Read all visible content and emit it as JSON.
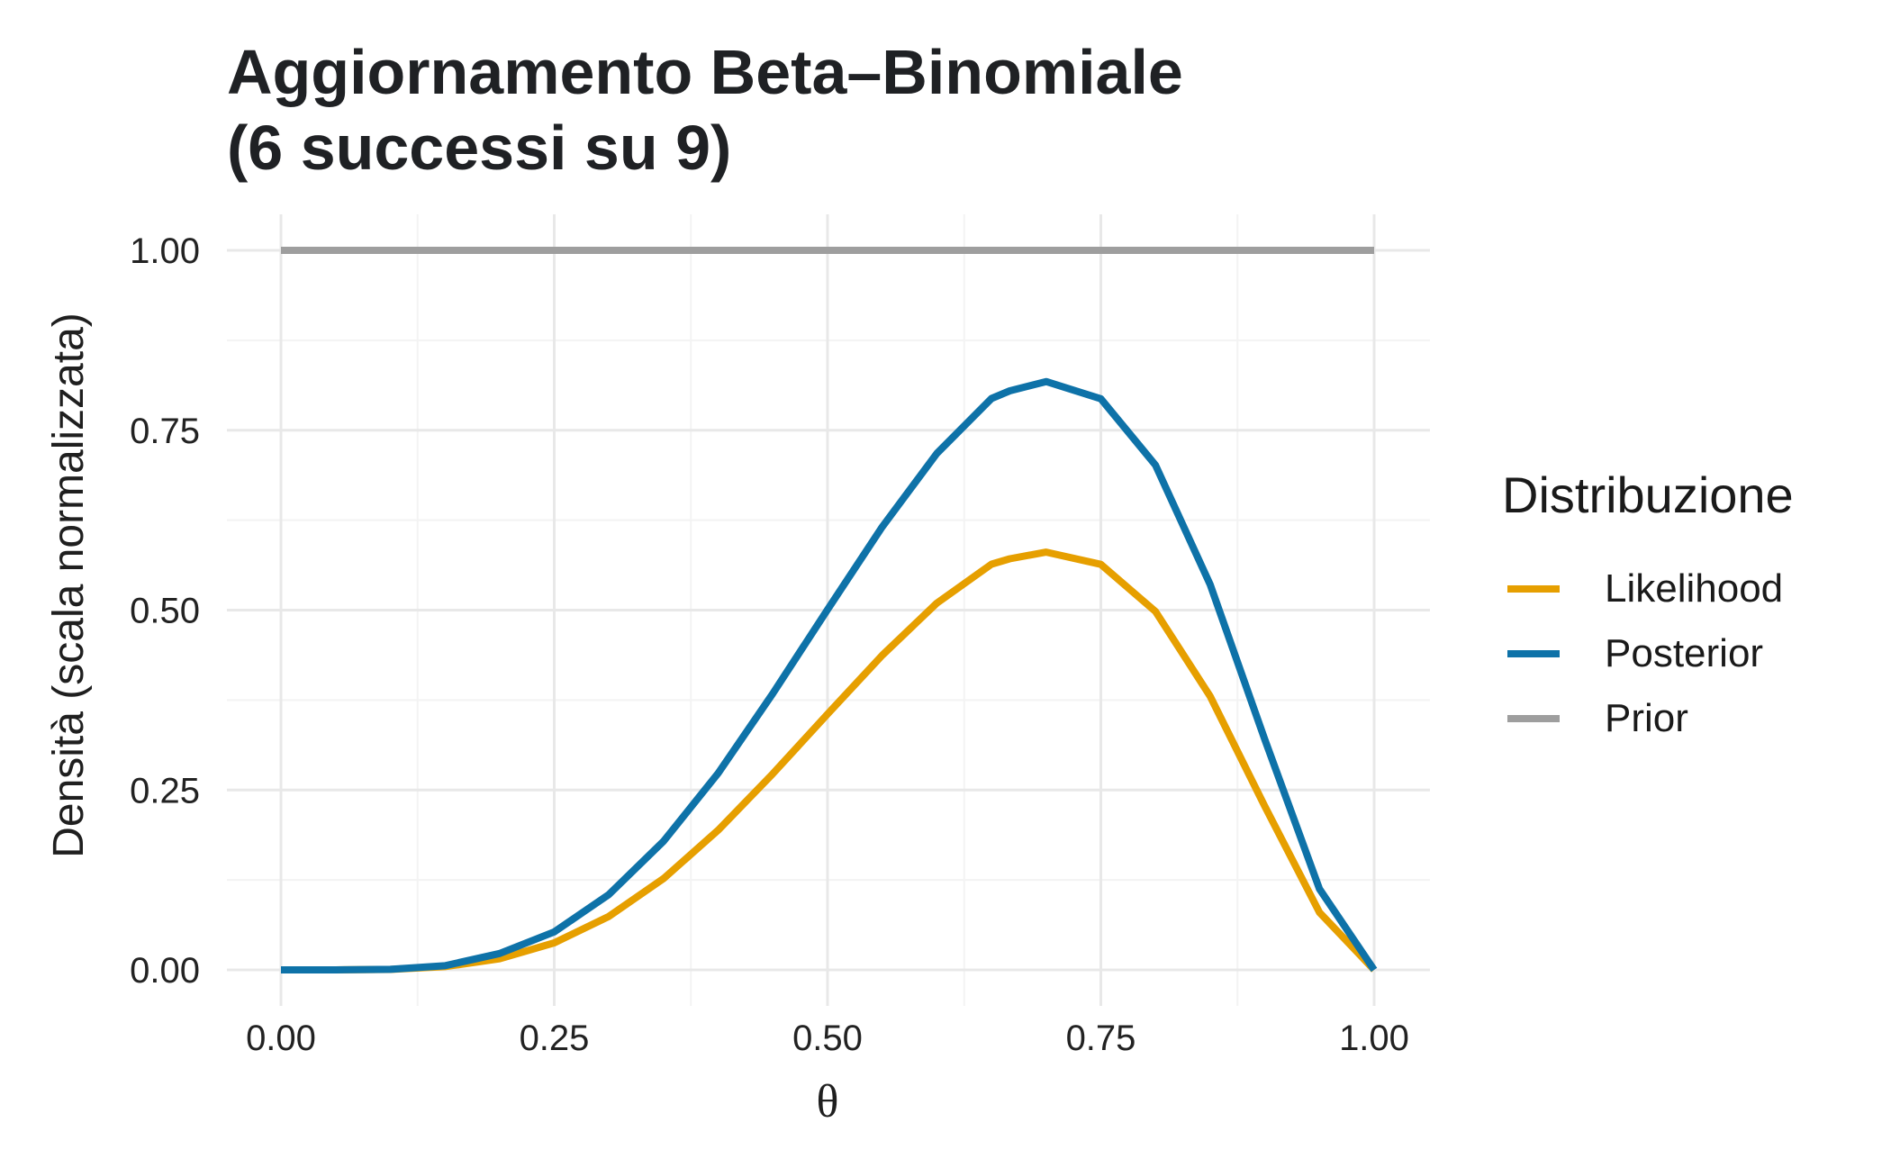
{
  "chart_data": {
    "type": "line",
    "title": [
      "Aggiornamento Beta–Binomiale",
      "(6 successi su 9)"
    ],
    "xlabel": "θ",
    "ylabel": "Densità (scala normalizzata)",
    "xlim": [
      0,
      1
    ],
    "ylim": [
      0,
      1
    ],
    "x_ticks": [
      "0.00",
      "0.25",
      "0.50",
      "0.75",
      "1.00"
    ],
    "y_ticks": [
      "0.00",
      "0.25",
      "0.50",
      "0.75",
      "1.00"
    ],
    "grid": true,
    "legend": {
      "title": "Distribuzione",
      "placement": "right",
      "entries": [
        {
          "name": "Likelihood",
          "color": "#E69F00"
        },
        {
          "name": "Posterior",
          "color": "#0E72A8"
        },
        {
          "name": "Prior",
          "color": "#9E9E9E"
        }
      ]
    },
    "series": [
      {
        "name": "Prior",
        "color": "#9E9E9E",
        "x": [
          0,
          1
        ],
        "y": [
          1,
          1
        ]
      },
      {
        "name": "Likelihood",
        "color": "#E69F00",
        "x": [
          0,
          0.05,
          0.1,
          0.15,
          0.2,
          0.25,
          0.3,
          0.35,
          0.4,
          0.45,
          0.5,
          0.55,
          0.6,
          0.65,
          0.6667,
          0.7,
          0.75,
          0.8,
          0.85,
          0.9,
          0.95,
          1
        ],
        "y": [
          0,
          0,
          0.0006,
          0.0045,
          0.0154,
          0.0376,
          0.0744,
          0.1269,
          0.1942,
          0.2727,
          0.3556,
          0.4372,
          0.5097,
          0.5638,
          0.5713,
          0.5806,
          0.5636,
          0.4981,
          0.3802,
          0.2273,
          0.0799,
          0
        ]
      },
      {
        "name": "Posterior",
        "color": "#0E72A8",
        "x": [
          0,
          0.05,
          0.1,
          0.15,
          0.2,
          0.25,
          0.3,
          0.35,
          0.4,
          0.45,
          0.5,
          0.55,
          0.6,
          0.65,
          0.6667,
          0.7,
          0.75,
          0.8,
          0.85,
          0.9,
          0.95,
          1
        ],
        "y": [
          0,
          0,
          0.0008,
          0.0057,
          0.0228,
          0.0528,
          0.1048,
          0.1788,
          0.2735,
          0.3842,
          0.5007,
          0.6157,
          0.7178,
          0.7941,
          0.8047,
          0.8177,
          0.7937,
          0.7015,
          0.5355,
          0.3201,
          0.1125,
          0
        ]
      }
    ]
  }
}
